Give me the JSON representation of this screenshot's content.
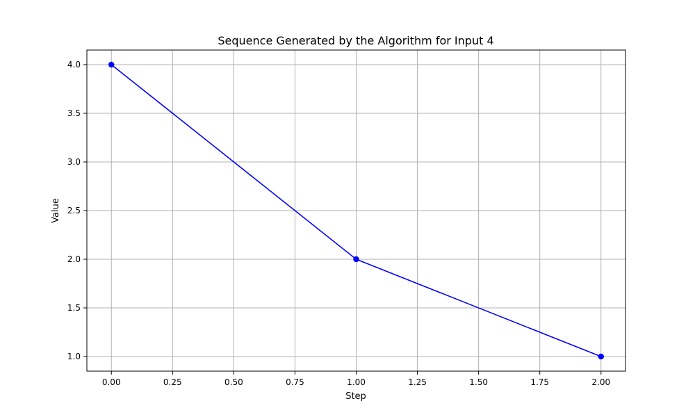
{
  "chart_data": {
    "type": "line",
    "title": "Sequence Generated by the Algorithm for Input 4",
    "xlabel": "Step",
    "ylabel": "Value",
    "x": [
      0,
      1,
      2
    ],
    "series": [
      {
        "values": [
          4.0,
          2.0,
          1.0
        ],
        "color": "#0000ff",
        "marker": "circle"
      }
    ],
    "xlim": [
      -0.1,
      2.1
    ],
    "ylim": [
      0.85,
      4.15
    ],
    "xticks": [
      0.0,
      0.25,
      0.5,
      0.75,
      1.0,
      1.25,
      1.5,
      1.75,
      2.0
    ],
    "xtick_labels": [
      "0.00",
      "0.25",
      "0.50",
      "0.75",
      "1.00",
      "1.25",
      "1.50",
      "1.75",
      "2.00"
    ],
    "yticks": [
      1.0,
      1.5,
      2.0,
      2.5,
      3.0,
      3.5,
      4.0
    ],
    "ytick_labels": [
      "1.0",
      "1.5",
      "2.0",
      "2.5",
      "3.0",
      "3.5",
      "4.0"
    ],
    "grid": true,
    "legend": "none"
  }
}
